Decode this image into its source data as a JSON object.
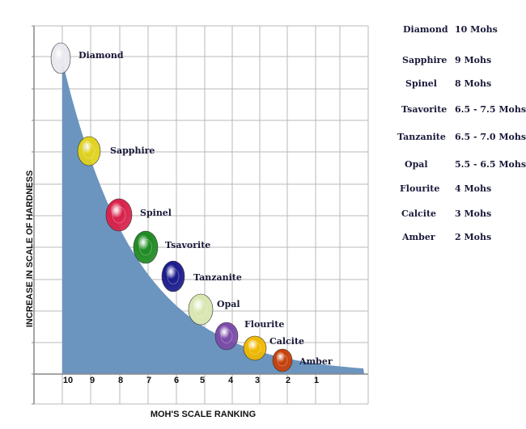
{
  "chart_data": {
    "type": "area",
    "xlabel": "MOH'S SCALE RANKING",
    "ylabel": "INCREASE IN SCALE OF HARDNESS",
    "x_ticks": [
      "10",
      "9",
      "8",
      "7",
      "6",
      "5",
      "4",
      "3",
      "2",
      "1"
    ],
    "x_direction": "descending",
    "grid": true,
    "legend_position": "right",
    "colors": {
      "area": "#6b95bf",
      "grid": "#b8b8b8",
      "axis": "#888888"
    },
    "gems": [
      {
        "name": "Diamond",
        "hardness": "10 Mohs",
        "rank": 10,
        "gem_color": "#e8e8ee"
      },
      {
        "name": "Sapphire",
        "hardness": "9 Mohs",
        "rank": 9,
        "gem_color": "#e0d21c"
      },
      {
        "name": "Spinel",
        "hardness": "8 Mohs",
        "rank": 8,
        "gem_color": "#d8214a"
      },
      {
        "name": "Tsavorite",
        "hardness": "6.5 - 7.5 Mohs",
        "rank": 7,
        "gem_color": "#1e8a22"
      },
      {
        "name": "Tanzanite",
        "hardness": "6.5 - 7.0 Mohs",
        "rank": 6,
        "gem_color": "#1a1a8c"
      },
      {
        "name": "Opal",
        "hardness": "5.5 - 6.5 Mohs",
        "rank": 5,
        "gem_color": "#d8e6b0"
      },
      {
        "name": "Flourite",
        "hardness": "4 Mohs",
        "rank": 4,
        "gem_color": "#7a4aa8"
      },
      {
        "name": "Calcite",
        "hardness": "3 Mohs",
        "rank": 3,
        "gem_color": "#f0b800"
      },
      {
        "name": "Amber",
        "hardness": "2 Mohs",
        "rank": 2,
        "gem_color": "#c8400a"
      }
    ]
  }
}
